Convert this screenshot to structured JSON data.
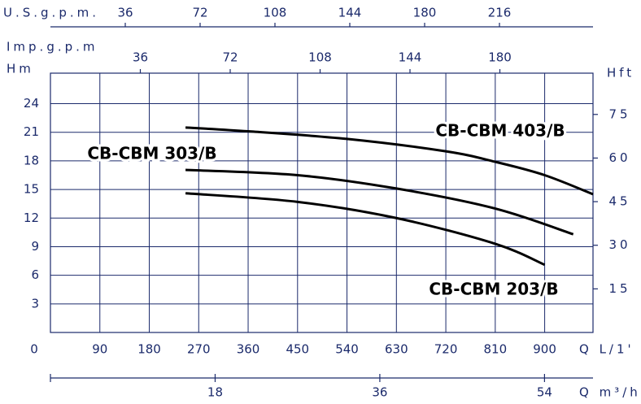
{
  "chart_data": {
    "type": "line",
    "xlabel": "Q L/1'",
    "ylabel": "Hm",
    "y2label": "Hft",
    "xlim": [
      0,
      988
    ],
    "xticks": [
      0,
      90,
      180,
      270,
      360,
      450,
      540,
      630,
      720,
      810,
      900
    ],
    "ylim": [
      0,
      27.2
    ],
    "yticks": [
      3,
      6,
      9,
      12,
      15,
      18,
      21,
      24
    ],
    "y2lim": [
      0,
      89.2
    ],
    "y2ticks": [
      15,
      30,
      45,
      60,
      75
    ],
    "grid": true,
    "top_axes": [
      {
        "label": "U.S.g.p.m.",
        "xlim": [
          0,
          261
        ],
        "xticks": [
          36,
          72,
          108,
          144,
          180,
          216
        ]
      },
      {
        "label": "Imp.g.p.m",
        "xlim": [
          0,
          217.3
        ],
        "xticks": [
          36,
          72,
          108,
          144,
          180
        ]
      }
    ],
    "bottom_axis": {
      "label": "Q m³/h",
      "xlim": [
        0,
        59.3
      ],
      "xticks": [
        18,
        36,
        54
      ]
    },
    "series": [
      {
        "name": "CB-CBM 403/B",
        "color": "#000000",
        "x": [
          246,
          360,
          540,
          720,
          810,
          900,
          988
        ],
        "values": [
          21.5,
          21.1,
          20.3,
          19.0,
          17.9,
          16.5,
          14.5
        ]
      },
      {
        "name": "CB-CBM 303/B",
        "color": "#000000",
        "x": [
          246,
          450,
          630,
          810,
          952
        ],
        "values": [
          17.05,
          16.5,
          15.1,
          13.0,
          10.3
        ]
      },
      {
        "name": "CB-CBM 203/B",
        "color": "#000000",
        "x": [
          246,
          450,
          630,
          810,
          900
        ],
        "values": [
          14.6,
          13.7,
          12.0,
          9.3,
          7.1
        ]
      }
    ]
  }
}
